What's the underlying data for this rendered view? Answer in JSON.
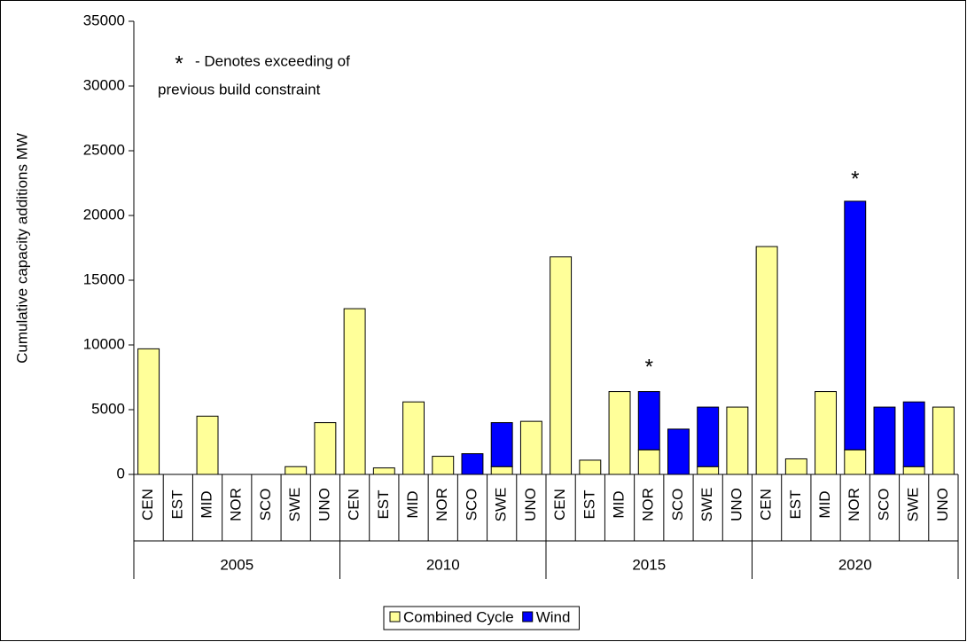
{
  "chart_data": {
    "type": "bar",
    "stacked": true,
    "y_label": "Cumulative capacity additions MW",
    "groups": [
      {
        "name": "2005",
        "categories": [
          "CEN",
          "EST",
          "MID",
          "NOR",
          "SCO",
          "SWE",
          "UNO"
        ]
      },
      {
        "name": "2010",
        "categories": [
          "CEN",
          "EST",
          "MID",
          "NOR",
          "SCO",
          "SWE",
          "UNO"
        ]
      },
      {
        "name": "2015",
        "categories": [
          "CEN",
          "EST",
          "MID",
          "NOR",
          "SCO",
          "SWE",
          "UNO"
        ]
      },
      {
        "name": "2020",
        "categories": [
          "CEN",
          "EST",
          "MID",
          "NOR",
          "SCO",
          "SWE",
          "UNO"
        ]
      }
    ],
    "series": [
      {
        "name": "Combined Cycle",
        "color": "#ffff99",
        "values": [
          9700,
          0,
          4500,
          0,
          0,
          600,
          4000,
          12800,
          500,
          5600,
          1400,
          0,
          600,
          4100,
          16800,
          1100,
          6400,
          1900,
          0,
          600,
          5200,
          17600,
          1200,
          6400,
          1900,
          0,
          600,
          5200
        ]
      },
      {
        "name": "Wind",
        "color": "#0000ff",
        "values": [
          0,
          0,
          0,
          0,
          0,
          0,
          0,
          0,
          0,
          0,
          0,
          1600,
          3400,
          0,
          0,
          0,
          0,
          4500,
          3500,
          4600,
          0,
          0,
          0,
          0,
          19200,
          5200,
          5000,
          0
        ]
      }
    ],
    "ylim": [
      0,
      35000
    ],
    "yticks": [
      0,
      5000,
      10000,
      15000,
      20000,
      25000,
      30000,
      35000
    ],
    "annotation": {
      "symbol": "*",
      "lines": [
        "- Denotes exceeding of",
        "previous build constraint"
      ]
    },
    "markers": [
      "*",
      "*"
    ],
    "legend": "bottom"
  }
}
